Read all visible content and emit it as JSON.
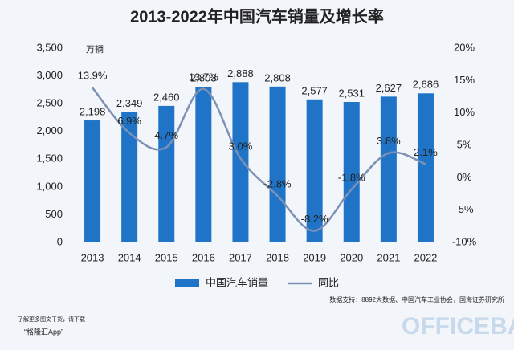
{
  "chart_data": {
    "type": "bar",
    "title": "2013-2022年中国汽车销量及增长率",
    "y_unit": "万辆",
    "categories": [
      "2013",
      "2014",
      "2015",
      "2016",
      "2017",
      "2018",
      "2019",
      "2020",
      "2021",
      "2022"
    ],
    "series": [
      {
        "name": "中国汽车销量",
        "type": "bar",
        "color": "#1f74c8",
        "values": [
          2198,
          2349,
          2460,
          2803,
          2888,
          2808,
          2577,
          2531,
          2627,
          2686
        ],
        "value_labels": [
          "2,198",
          "2,349",
          "2,460",
          "2,803",
          "2,888",
          "2,808",
          "2,577",
          "2,531",
          "2,627",
          "2,686"
        ]
      },
      {
        "name": "同比",
        "type": "line",
        "axis": "y2",
        "color": "#7d91b4",
        "values": [
          13.9,
          6.9,
          4.7,
          13.7,
          3.0,
          -2.8,
          -8.2,
          -1.8,
          3.8,
          2.1
        ],
        "value_labels": [
          "13.9%",
          "6.9%",
          "4.7%",
          "13.7%",
          "3.0%",
          "-2.8%",
          "-8.2%",
          "-1.8%",
          "3.8%",
          "2.1%"
        ]
      }
    ],
    "ylim": [
      0,
      3500
    ],
    "yticks": [
      0,
      500,
      {
        "value": 1000,
        "label": "1,000"
      },
      {
        "value": 1500,
        "label": "1,500"
      },
      {
        "value": 2000,
        "label": "2,000"
      },
      {
        "value": 2500,
        "label": "2,500"
      },
      {
        "value": 3000,
        "label": "3,000"
      },
      {
        "value": 3500,
        "label": "3,500"
      }
    ],
    "y2lim": [
      -10,
      20
    ],
    "y2ticks": [
      {
        "value": -10,
        "label": "-10%"
      },
      {
        "value": -5,
        "label": "-5%"
      },
      {
        "value": 0,
        "label": "0%"
      },
      {
        "value": 5,
        "label": "5%"
      },
      {
        "value": 10,
        "label": "10%"
      },
      {
        "value": 15,
        "label": "15%"
      },
      {
        "value": 20,
        "label": "20%"
      }
    ],
    "grid": false,
    "legend": "bottom",
    "source": "数据支持：8892大数据、中国汽车工业协会，国海证券研究所"
  },
  "footer": {
    "line1": "了解更多图文干货，请下载",
    "line2": "“格隆汇App”",
    "watermark": "OFFICEBA"
  }
}
